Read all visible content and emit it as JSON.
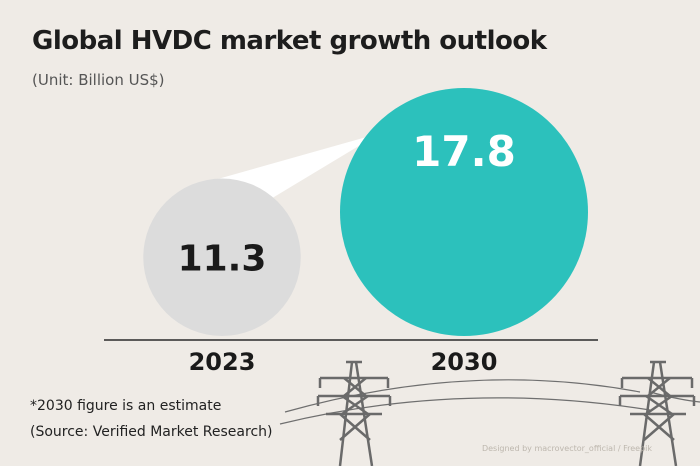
{
  "chart_data": {
    "type": "bubble",
    "title": "Global HVDC market growth outlook",
    "subtitle": "(Unit: Billion US$)",
    "categories": [
      "2023",
      "2030"
    ],
    "values": [
      11.3,
      17.8
    ],
    "value_labels": [
      "11.3",
      "17.8"
    ],
    "note": "*2030 figure is an estimate",
    "source": "(Source: Verified Market Research)"
  },
  "credit": "Designed by macrovector_official / Freepik",
  "colors": {
    "background": "#efebe6",
    "bubble_2023": "#dcdcdc",
    "bubble_2030": "#2cc1bc",
    "label_dark": "#1a1a1a",
    "label_light": "#ffffff"
  }
}
